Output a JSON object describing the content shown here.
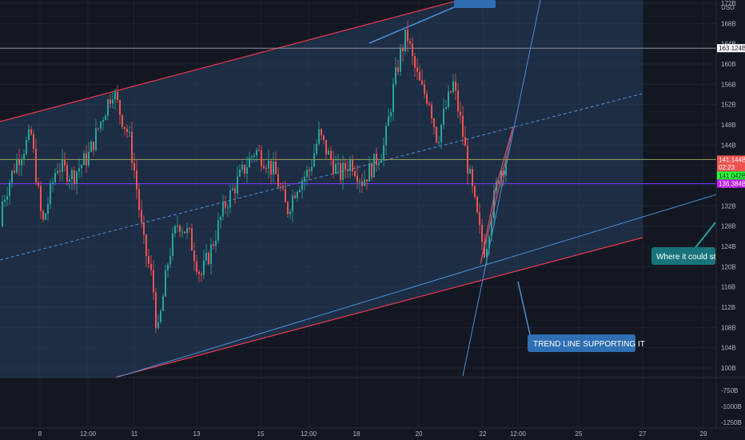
{
  "chart_data": {
    "type": "candlestick",
    "title": "",
    "currency": "USD",
    "y_range": [
      98,
      173
    ],
    "y_ticks": [
      {
        "label": "172B",
        "value": 172
      },
      {
        "label": "168B",
        "value": 168
      },
      {
        "label": "164B",
        "value": 164
      },
      {
        "label": "160B",
        "value": 160
      },
      {
        "label": "156B",
        "value": 156
      },
      {
        "label": "152B",
        "value": 152
      },
      {
        "label": "148B",
        "value": 148
      },
      {
        "label": "144B",
        "value": 144
      },
      {
        "label": "140B",
        "value": 140
      },
      {
        "label": "136B",
        "value": 136
      },
      {
        "label": "132B",
        "value": 132
      },
      {
        "label": "128B",
        "value": 128
      },
      {
        "label": "124B",
        "value": 124
      },
      {
        "label": "120B",
        "value": 120
      },
      {
        "label": "116B",
        "value": 116
      },
      {
        "label": "112B",
        "value": 112
      },
      {
        "label": "108B",
        "value": 108
      },
      {
        "label": "104B",
        "value": 104
      },
      {
        "label": "100B",
        "value": 100
      }
    ],
    "lower_pane_ticks": [
      {
        "label": "-750B",
        "value": -750
      },
      {
        "label": "-1000B",
        "value": -1000
      },
      {
        "label": "-1250B",
        "value": -1250
      }
    ],
    "x_ticks": [
      "8",
      "12:00",
      "11",
      "13",
      "15",
      "12:00",
      "18",
      "20",
      "22",
      "12:00",
      "25",
      "27",
      "29"
    ],
    "price_tags": [
      {
        "label": "163.124B",
        "value": 163.124,
        "bg": "#ffffff",
        "fg": "#131722"
      },
      {
        "label": "141.144B",
        "value": 141.144,
        "bg": "#ef5350",
        "fg": "#ffffff"
      },
      {
        "label": "02:23",
        "value": 139.6,
        "bg": "#ef5350",
        "fg": "#ffffff"
      },
      {
        "label": "141.042B",
        "value": 138.0,
        "bg": "#26ff3b",
        "fg": "#131722"
      },
      {
        "label": "136.384B",
        "value": 136.384,
        "bg": "#c020f0",
        "fg": "#ffffff"
      }
    ],
    "horizontal_lines": [
      {
        "value": 163.124,
        "color": "#8a8f9c"
      },
      {
        "value": 141.144,
        "color": "#9aa35a"
      },
      {
        "value": 136.384,
        "color": "#7b3cff"
      }
    ],
    "annotations": {
      "support_callout": "TREND LINE SUPPORTING IT",
      "right_callout": "Where it could start go"
    },
    "series_start": 128,
    "series_end": 141,
    "colors": {
      "up": "#26a69a",
      "down": "#ef5350",
      "channel": "#2a4a6e"
    }
  }
}
